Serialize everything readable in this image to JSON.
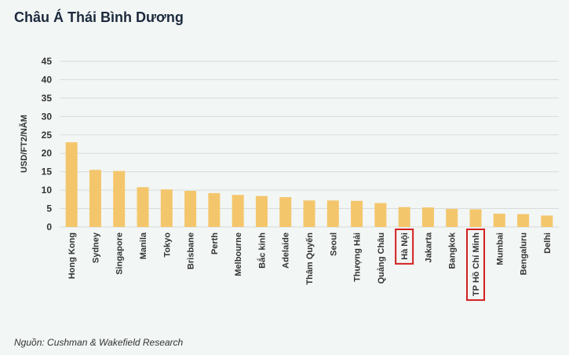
{
  "title": "Châu Á Thái Bình Dương",
  "source": "Nguồn: Cushman & Wakefield Research",
  "colors": {
    "bar": "#f4c66c",
    "highlight": "#d21f1f",
    "grid": "#d7dcdc"
  },
  "chart_data": {
    "type": "bar",
    "ylabel": "USD/FT2/NĂM",
    "ylim": [
      0,
      45
    ],
    "yticks": [
      0,
      5,
      10,
      15,
      20,
      25,
      30,
      35,
      40,
      45
    ],
    "grid": true,
    "categories": [
      "Hong Kong",
      "Sydney",
      "Singapore",
      "Manila",
      "Tokyo",
      "Brisbane",
      "Perth",
      "Melbourne",
      "Bắc kinh",
      "Adelaide",
      "Thâm Quyến",
      "Seoul",
      "Thượng Hải",
      "Quảng Châu",
      "Hà Nội",
      "Jakarta",
      "Bangkok",
      "TP Hồ Chí Minh",
      "Mumbai",
      "Bengaluru",
      "Delhi"
    ],
    "values": [
      23,
      15.5,
      15.2,
      10.8,
      10.2,
      9.8,
      9.2,
      8.7,
      8.4,
      8.1,
      7.2,
      7.2,
      7.1,
      6.5,
      5.4,
      5.3,
      4.9,
      4.8,
      3.6,
      3.5,
      3.1
    ],
    "highlighted": [
      "Hà Nội",
      "TP Hồ Chí Minh"
    ]
  }
}
